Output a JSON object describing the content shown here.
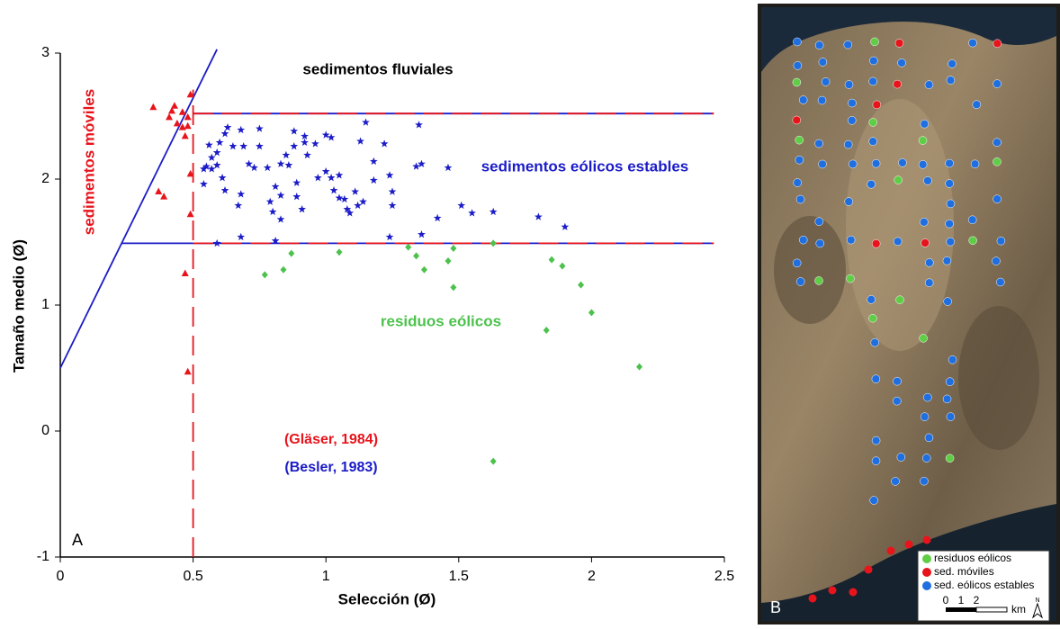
{
  "chart_data": {
    "type": "scatter",
    "xlabel": "Selección (Ø)",
    "ylabel": "Tamaño medio (Ø)",
    "xlim": [
      0,
      2.5
    ],
    "ylim": [
      -1,
      3
    ],
    "xticks": [
      0,
      0.5,
      1,
      1.5,
      2,
      2.5
    ],
    "yticks": [
      -1,
      0,
      1,
      2,
      3
    ],
    "series": [
      {
        "name": "sedimentos móviles",
        "color": "#e8141c",
        "marker": "triangle",
        "x": [
          0.35,
          0.41,
          0.42,
          0.43,
          0.44,
          0.46,
          0.48,
          0.46,
          0.47,
          0.48,
          0.37,
          0.39,
          0.49,
          0.49,
          0.47,
          0.48,
          0.49
        ],
        "values": [
          2.57,
          2.49,
          2.54,
          2.58,
          2.44,
          2.53,
          2.49,
          2.41,
          2.34,
          2.42,
          1.9,
          1.86,
          2.04,
          1.72,
          1.25,
          0.47,
          2.67
        ]
      },
      {
        "name": "sedimentos eólicos estables",
        "color": "#1c1cc8",
        "marker": "star",
        "x": [
          0.54,
          0.56,
          0.57,
          0.59,
          0.6,
          0.62,
          0.63,
          0.54,
          0.55,
          0.57,
          0.59,
          0.61,
          0.62,
          0.65,
          0.68,
          0.69,
          0.73,
          0.71,
          0.68,
          0.67,
          0.68,
          0.75,
          0.75,
          0.78,
          0.81,
          0.79,
          0.8,
          0.83,
          0.83,
          0.83,
          0.86,
          0.85,
          0.88,
          0.88,
          0.89,
          0.89,
          0.91,
          0.92,
          0.93,
          0.92,
          0.96,
          0.97,
          1.0,
          1.0,
          1.02,
          1.02,
          1.03,
          1.05,
          1.05,
          1.07,
          1.08,
          1.09,
          1.12,
          1.14,
          1.11,
          1.13,
          1.15,
          1.18,
          1.18,
          1.22,
          1.24,
          1.25,
          1.25,
          1.34,
          1.35,
          1.36,
          1.36,
          1.42,
          1.46,
          1.51,
          1.55,
          1.63,
          1.8,
          1.9,
          1.24,
          0.81,
          0.59
        ],
        "values": [
          2.08,
          2.27,
          2.17,
          2.21,
          2.29,
          2.36,
          2.41,
          1.96,
          2.1,
          2.08,
          2.11,
          2.01,
          1.91,
          2.26,
          2.39,
          2.26,
          2.09,
          2.12,
          1.88,
          1.79,
          1.54,
          2.4,
          2.26,
          2.09,
          1.94,
          1.82,
          1.74,
          1.87,
          1.68,
          2.12,
          2.11,
          2.19,
          2.38,
          2.26,
          1.97,
          1.86,
          1.76,
          2.29,
          2.19,
          2.34,
          2.28,
          2.01,
          2.06,
          2.35,
          2.33,
          2.01,
          1.91,
          2.03,
          1.85,
          1.84,
          1.76,
          1.73,
          1.79,
          1.82,
          1.9,
          2.3,
          2.45,
          2.14,
          1.99,
          2.28,
          2.03,
          1.9,
          1.79,
          2.1,
          2.43,
          2.12,
          1.56,
          1.69,
          2.09,
          1.79,
          1.73,
          1.74,
          1.7,
          1.62,
          1.54,
          1.51,
          1.49
        ]
      },
      {
        "name": "residuos eólicos",
        "color": "#4cc24c",
        "marker": "diamond",
        "x": [
          0.77,
          0.84,
          0.87,
          1.05,
          1.31,
          1.34,
          1.37,
          1.48,
          1.46,
          1.48,
          1.63,
          1.85,
          1.89,
          1.96,
          2.0,
          1.83,
          2.18,
          1.63
        ],
        "values": [
          1.24,
          1.28,
          1.41,
          1.42,
          1.46,
          1.39,
          1.28,
          1.45,
          1.35,
          1.14,
          1.49,
          1.36,
          1.31,
          1.16,
          0.94,
          0.8,
          0.51,
          -0.24
        ]
      }
    ],
    "lines": [
      {
        "color": "#1c1cc8",
        "dash": false,
        "x": [
          0,
          0.59
        ],
        "y": [
          0.5,
          3.03
        ]
      },
      {
        "color": "#1c1cc8",
        "dash": false,
        "x": [
          0.23,
          2.46
        ],
        "y": [
          1.49,
          1.49
        ]
      },
      {
        "color": "#1c1cc8",
        "dash": false,
        "x": [
          0.5,
          2.46
        ],
        "y": [
          2.52,
          2.52
        ]
      },
      {
        "color": "#e8141c",
        "dash": true,
        "x": [
          0.5,
          2.46
        ],
        "y": [
          1.49,
          1.49
        ]
      },
      {
        "color": "#e8141c",
        "dash": true,
        "x": [
          0.5,
          2.46
        ],
        "y": [
          2.52,
          2.52
        ]
      },
      {
        "color": "#e8141c",
        "dash": true,
        "x": [
          0.5,
          0.5
        ],
        "y": [
          -1,
          2.71
        ]
      }
    ],
    "annotations": [
      {
        "text": "sedimentos fluviales",
        "color": "#000000"
      },
      {
        "text": "(Gläser, 1984)",
        "color": "#e8141c"
      },
      {
        "text": "(Besler, 1983)",
        "color": "#1c1cc8"
      }
    ],
    "panel_label": "A"
  },
  "map": {
    "panel_label": "B",
    "legend": [
      {
        "label": "residuos eólicos",
        "color": "#5fce46"
      },
      {
        "label": "sed. móviles",
        "color": "#e8141c"
      },
      {
        "label": "sed. eólicos estables",
        "color": "#1f6fe0"
      }
    ],
    "scale_ticks": [
      "0",
      "1",
      "2"
    ],
    "scale_unit": "km",
    "north": "N"
  }
}
